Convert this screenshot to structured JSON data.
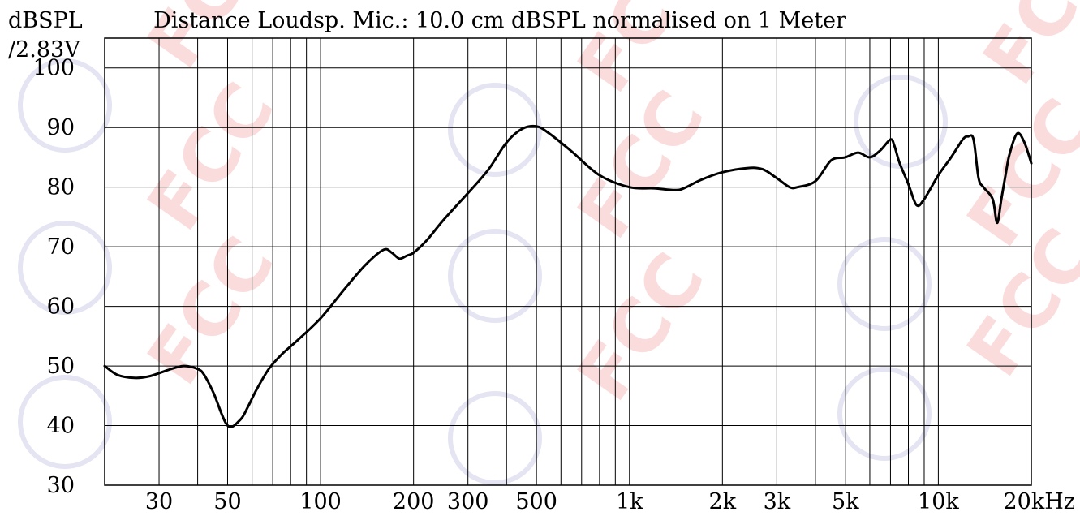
{
  "chart_data": {
    "type": "line",
    "title": "Distance Loudsp. Mic.: 10.0 cm dBSPL normalised on 1 Meter",
    "ylabel": [
      "dBSPL",
      "/2.83V"
    ],
    "xlabel": "",
    "x_scale": "log",
    "xlim": [
      20,
      20000
    ],
    "ylim": [
      30,
      105
    ],
    "grid": true,
    "y_tick_labels": [
      "100",
      "90",
      "80",
      "70",
      "60",
      "50",
      "40",
      "30"
    ],
    "y_tick_values": [
      100,
      90,
      80,
      70,
      60,
      50,
      40,
      30
    ],
    "x_tick_labels": [
      "30",
      "50",
      "100",
      "200",
      "300",
      "500",
      "1k",
      "2k",
      "3k",
      "5k",
      "10k",
      "20kHz"
    ],
    "x_tick_values": [
      30,
      50,
      100,
      200,
      300,
      500,
      1000,
      2000,
      3000,
      5000,
      10000,
      20000
    ],
    "series": [
      {
        "color": "#000000",
        "x": [
          20,
          22,
          25,
          28,
          32,
          36,
          40,
          42,
          45,
          50,
          55,
          58,
          62,
          68,
          75,
          85,
          100,
          120,
          140,
          160,
          170,
          180,
          190,
          200,
          220,
          250,
          300,
          350,
          400,
          450,
          500,
          550,
          650,
          800,
          1000,
          1200,
          1400,
          1500,
          1700,
          2000,
          2400,
          2700,
          3000,
          3300,
          3500,
          4000,
          4500,
          5000,
          5500,
          6000,
          6500,
          7000,
          7200,
          7500,
          8000,
          8500,
          9000,
          10000,
          11000,
          12000,
          12500,
          13000,
          13500,
          14000,
          15000,
          15500,
          16000,
          16500,
          17000,
          18000,
          19000,
          20000
        ],
        "y": [
          50,
          48.5,
          48,
          48.3,
          49.3,
          50,
          49.5,
          48.5,
          45.5,
          40,
          41,
          43,
          46,
          49.5,
          52,
          54.5,
          58,
          63,
          67,
          69.5,
          69,
          68,
          68.5,
          69,
          71,
          74.5,
          79,
          83,
          87.5,
          89.8,
          90.2,
          89,
          86,
          82,
          80,
          79.8,
          79.5,
          79.8,
          81.2,
          82.5,
          83.2,
          83,
          81.5,
          80,
          80,
          81,
          84.5,
          85,
          85.8,
          85,
          86.2,
          88,
          87,
          84,
          80.5,
          77,
          78,
          82,
          85,
          88,
          88.5,
          88,
          81.5,
          80,
          78,
          74,
          78,
          82,
          85.5,
          89,
          87.5,
          84
        ]
      }
    ]
  }
}
